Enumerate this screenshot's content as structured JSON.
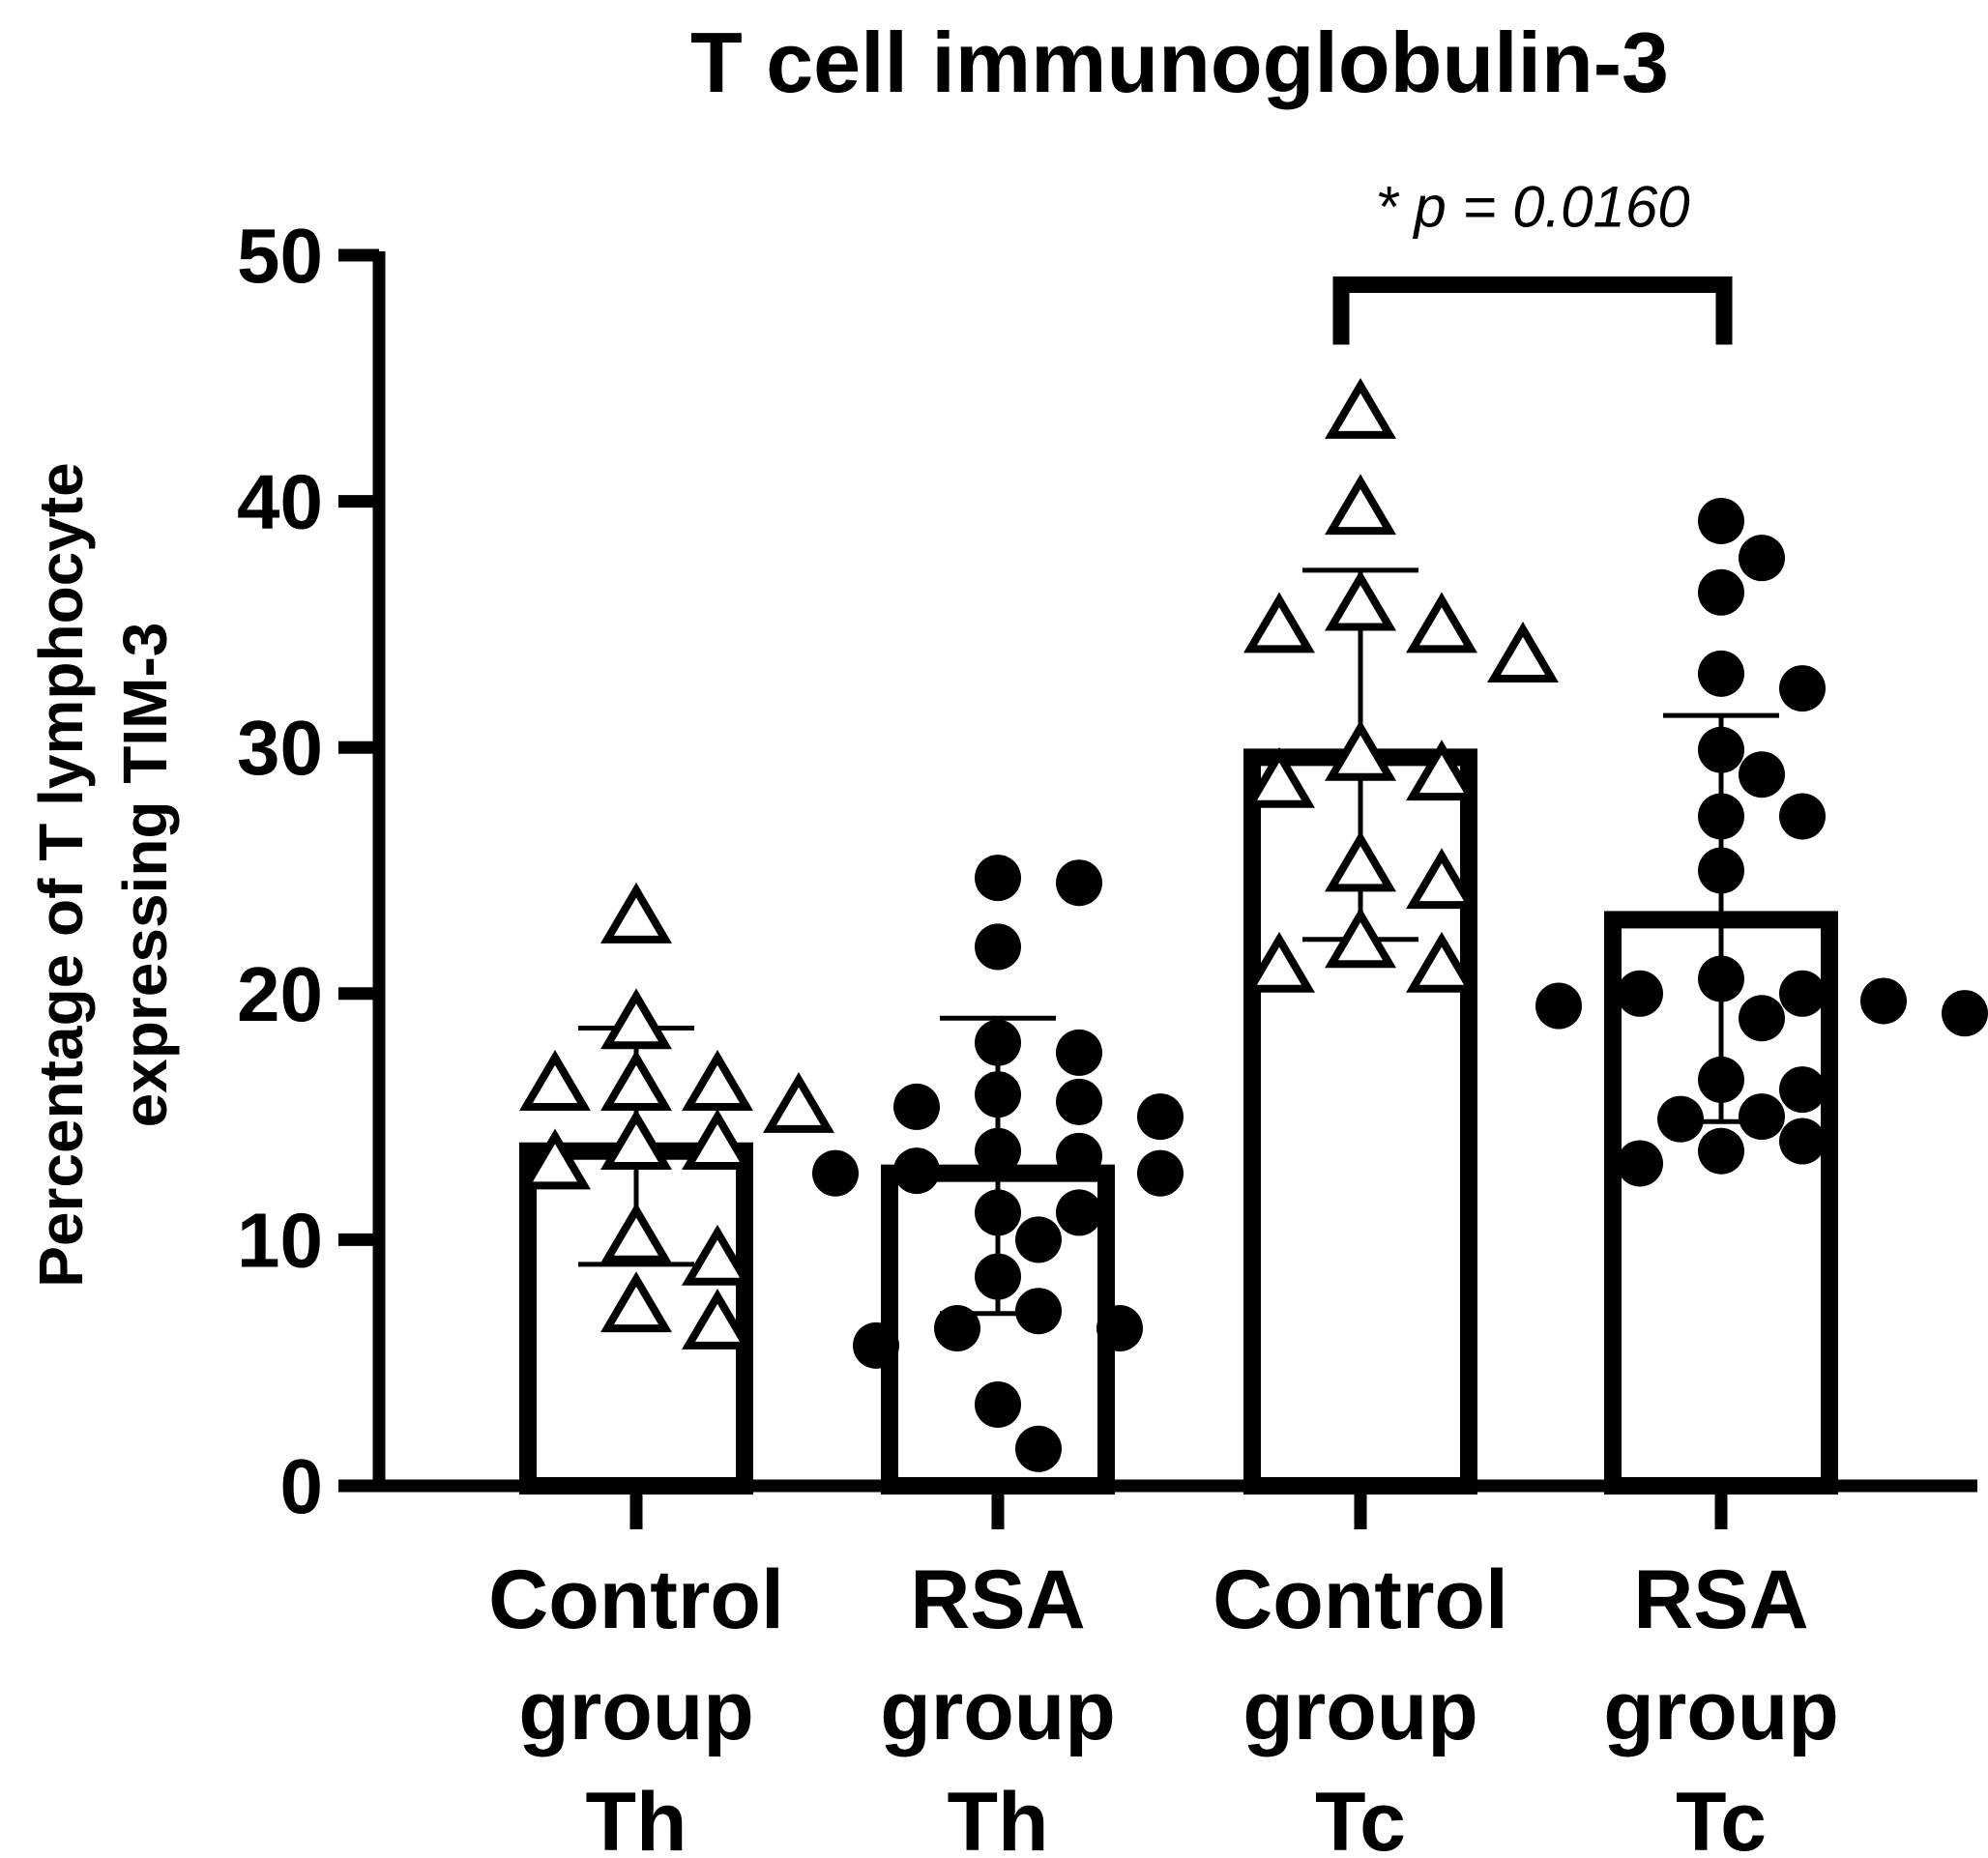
{
  "chart_data": {
    "type": "bar",
    "title": "T cell immunoglobulin-3",
    "ylabel_line1": "Percentage of T lymphocyte",
    "ylabel_line2": "expressing TIM-3",
    "xlabel": "",
    "ylim": [
      0,
      50
    ],
    "yticks": [
      0,
      10,
      20,
      30,
      40,
      50
    ],
    "grid": false,
    "legend": "none",
    "categories": [
      [
        "Control",
        "group",
        "Th"
      ],
      [
        "RSA",
        "group",
        "Th"
      ],
      [
        "Control",
        "group",
        "Tc"
      ],
      [
        "RSA",
        "group",
        "Tc"
      ]
    ],
    "bars": [
      {
        "mean": 13.6,
        "sd_low": 9.0,
        "sd_high": 18.6,
        "marker": "triangle",
        "points": [
          23.0,
          18.7,
          16.2,
          16.2,
          16.2,
          15.3,
          13.8,
          13.8,
          13.0,
          10.0,
          9.1,
          7.2,
          6.5
        ]
      },
      {
        "mean": 12.7,
        "sd_low": 7.0,
        "sd_high": 19.0,
        "marker": "circle",
        "points": [
          24.7,
          24.5,
          21.9,
          18.0,
          17.6,
          15.9,
          15.6,
          15.4,
          15.0,
          13.6,
          13.4,
          12.8,
          12.7,
          12.7,
          11.1,
          11.1,
          10.0,
          8.5,
          7.1,
          6.4,
          6.4,
          5.7,
          3.3,
          1.5
        ]
      },
      {
        "mean": 29.6,
        "sd_low": 22.2,
        "sd_high": 37.2,
        "marker": "triangle",
        "points": [
          43.5,
          39.6,
          35.7,
          34.8,
          34.8,
          33.6,
          29.6,
          28.8,
          28.5,
          25.1,
          24.4,
          22.0,
          21.0,
          21.0
        ]
      },
      {
        "mean": 23.0,
        "sd_low": 14.8,
        "sd_high": 31.3,
        "marker": "circle",
        "points": [
          39.2,
          37.7,
          36.3,
          33.0,
          32.4,
          29.9,
          28.9,
          27.2,
          27.2,
          25.0,
          20.6,
          20.0,
          20.0,
          19.7,
          19.5,
          19.2,
          19.0,
          16.5,
          16.1,
          15.0,
          14.9,
          14.0,
          13.6,
          13.1
        ]
      }
    ],
    "annotations": [
      {
        "text": "* p = 0.0160",
        "from_category": 2,
        "to_category": 3,
        "bracket_y": 48.8
      }
    ]
  }
}
